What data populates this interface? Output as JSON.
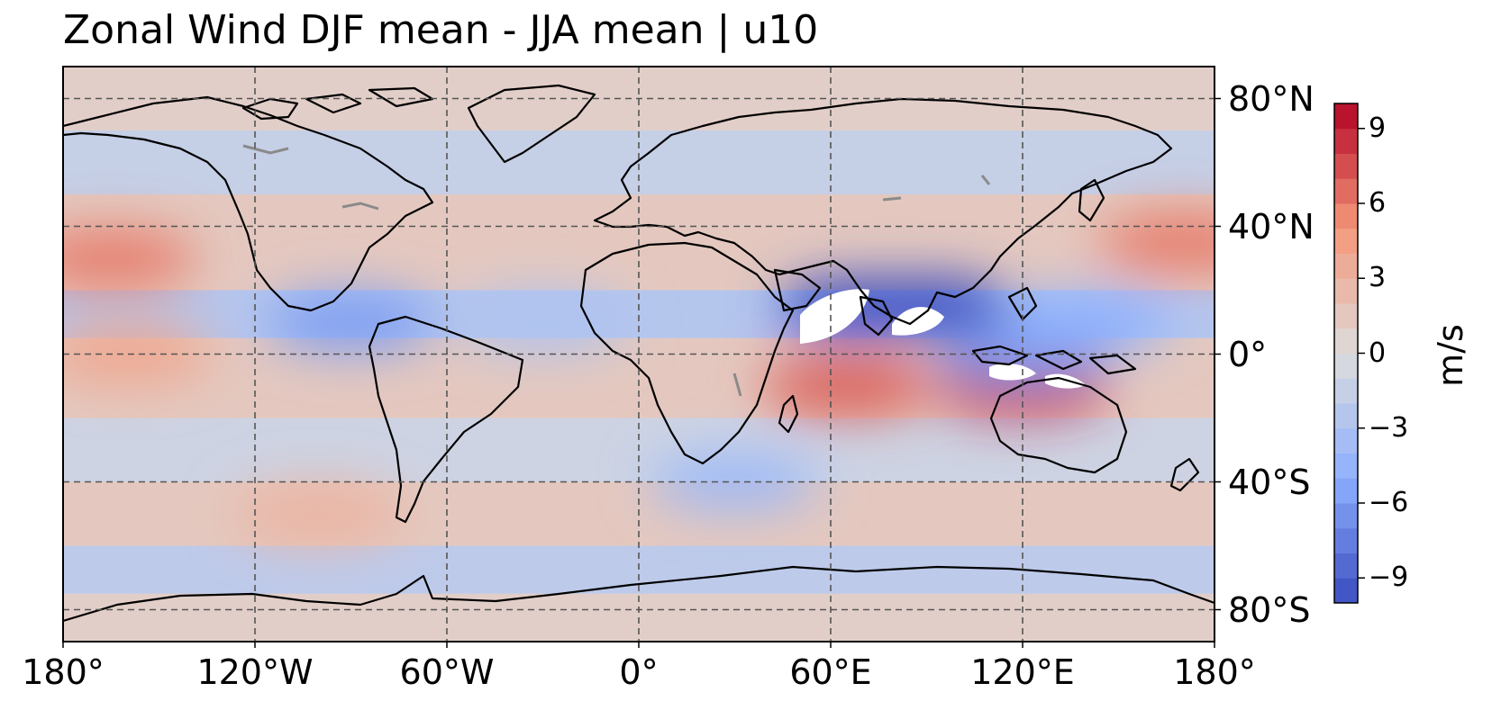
{
  "title": "Zonal Wind DJF mean - JJA mean | u10",
  "map": {
    "projection": "PlateCarree",
    "lon_range": [
      -180,
      180
    ],
    "lat_range": [
      -90,
      90
    ],
    "gridlines": true,
    "gridline_style": "dashed",
    "lat_labels": [
      {
        "lat": 80,
        "text": "80°N"
      },
      {
        "lat": 40,
        "text": "40°N"
      },
      {
        "lat": 0,
        "text": "0°"
      },
      {
        "lat": -40,
        "text": "40°S"
      },
      {
        "lat": -80,
        "text": "80°S"
      }
    ],
    "lon_labels": [
      {
        "lon": -180,
        "text": "180°"
      },
      {
        "lon": -120,
        "text": "120°W"
      },
      {
        "lon": -60,
        "text": "60°W"
      },
      {
        "lon": 0,
        "text": "0°"
      },
      {
        "lon": 60,
        "text": "60°E"
      },
      {
        "lon": 120,
        "text": "120°E"
      },
      {
        "lon": 180,
        "text": "180°"
      }
    ]
  },
  "colorbar": {
    "unit": "m/s",
    "cmap": "coolwarm",
    "range": [
      -10,
      10
    ],
    "position": "right",
    "ticks": [
      {
        "value": 9,
        "text": "9"
      },
      {
        "value": 6,
        "text": "6"
      },
      {
        "value": 3,
        "text": "3"
      },
      {
        "value": 0,
        "text": "0"
      },
      {
        "value": -3,
        "text": "−3"
      },
      {
        "value": -6,
        "text": "−6"
      },
      {
        "value": -9,
        "text": "−9"
      }
    ]
  },
  "colors": {
    "neutral": "#dddcdc",
    "pos_strong": "#b40426",
    "neg_strong": "#3b4cc0",
    "land_outline": "#000000",
    "lake_outline": "#888888"
  },
  "field_features": [
    {
      "lon": -165,
      "lat": 30,
      "value": 6
    },
    {
      "lon": -160,
      "lat": 0,
      "value": 4
    },
    {
      "lon": -100,
      "lat": -50,
      "value": 3
    },
    {
      "lon": -90,
      "lat": 10,
      "value": -6
    },
    {
      "lon": -30,
      "lat": 10,
      "value": -3
    },
    {
      "lon": 70,
      "lat": 15,
      "value": -10
    },
    {
      "lon": 90,
      "lat": 15,
      "value": -10
    },
    {
      "lon": 65,
      "lat": -10,
      "value": 7
    },
    {
      "lon": 120,
      "lat": -10,
      "value": 9
    },
    {
      "lon": 170,
      "lat": 35,
      "value": 6
    },
    {
      "lon": 30,
      "lat": -40,
      "value": -4
    },
    {
      "lon": 120,
      "lat": 0,
      "value": -6
    },
    {
      "lon": 140,
      "lat": 10,
      "value": -5
    }
  ]
}
